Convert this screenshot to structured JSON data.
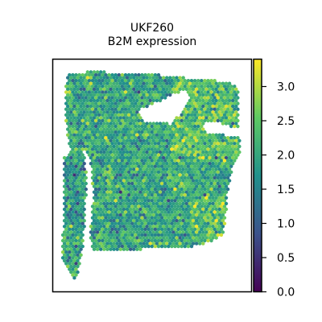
{
  "chart_data": {
    "type": "scatter",
    "subtype": "spatial-transcriptomics-spot-map",
    "title_line1": "UKF260",
    "title_line2": "B2M expression",
    "xlabel": "",
    "ylabel": "",
    "colormap": "viridis",
    "color_range": [
      0.0,
      3.4
    ],
    "colorbar_ticks": [
      0.0,
      0.5,
      1.0,
      1.5,
      2.0,
      2.5,
      3.0
    ],
    "colorbar_tick_labels": [
      "0.0",
      "0.5",
      "1.0",
      "1.5",
      "2.0",
      "2.5",
      "3.0"
    ],
    "grid": false,
    "legend": "colorbar-right",
    "typical_value": 2.0,
    "value_spread": 0.45
  }
}
